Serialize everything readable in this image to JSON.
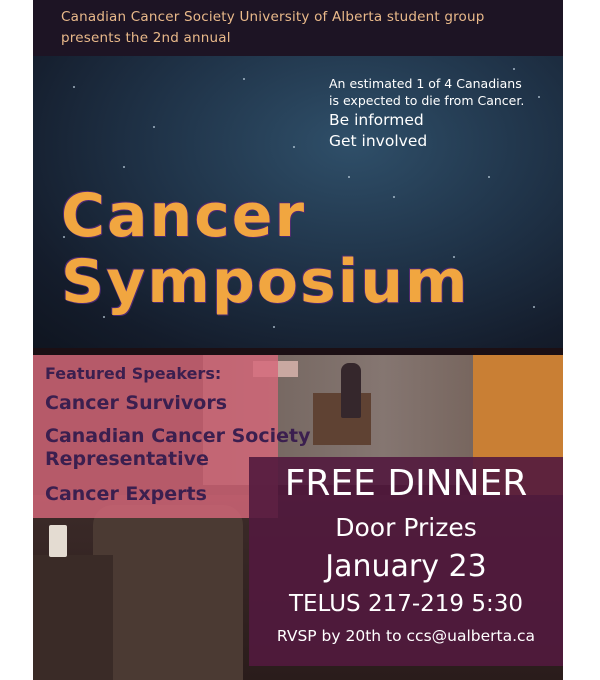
{
  "header": {
    "line1": "Canadian Cancer Society University of Alberta student group",
    "line2": "presents the 2nd annual"
  },
  "stat": {
    "line1": "An estimated 1 of 4 Canadians",
    "line2": "is expected to die from Cancer.",
    "line3": "Be informed",
    "line4": "Get involved"
  },
  "title": {
    "line1": "Cancer",
    "line2": "Symposium"
  },
  "speakers": {
    "heading": "Featured Speakers:",
    "items": [
      "Cancer Survivors",
      "Canadian Cancer Society",
      "Representative",
      "Cancer Experts"
    ]
  },
  "event": {
    "dinner": "FREE DINNER",
    "prizes": "Door Prizes",
    "date": "January 23",
    "location": "TELUS 217-219 5:30",
    "rsvp": "RVSP by 20th to ccs@ualberta.ca"
  },
  "colors": {
    "title_orange": "#f1a640",
    "header_text": "#e9b98a",
    "pink_box": "#d6687a",
    "dinner_box": "#521a3e"
  }
}
